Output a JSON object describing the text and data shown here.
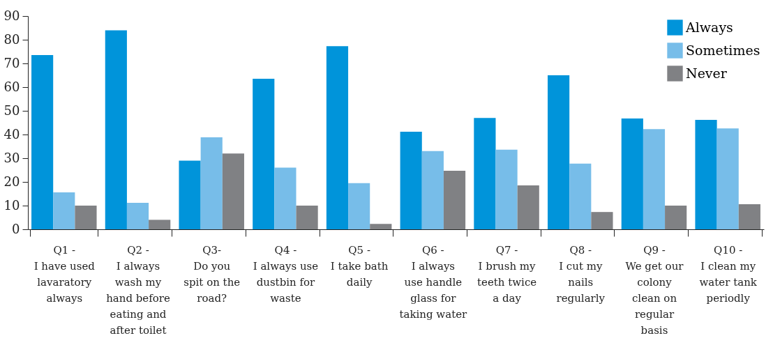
{
  "chart_data": {
    "type": "bar",
    "categories": [
      "Q1 -\nI have used\nlavaratory\nalways",
      "Q2 -\nI always\nwash my\nhand before\neating and\nafter toilet",
      "Q3-\nDo you\nspit on the\nroad?",
      "Q4 -\nI always use\ndustbin for\nwaste",
      "Q5 -\nI take bath\ndaily",
      "Q6 -\nI always\nuse handle\nglass for\ntaking water",
      "Q7 -\nI brush my\nteeth twice\na day",
      "Q8 -\nI cut my\nnails\nregularly",
      "Q9 -\nWe get our\ncolony\nclean on\nregular\nbasis",
      "Q10 -\nI clean my\nwater tank\nperiodly"
    ],
    "series": [
      {
        "name": "Always",
        "color": "#0094da",
        "values": [
          73.5,
          84,
          29,
          63.5,
          77.3,
          41.2,
          47,
          65,
          46.8,
          46.2
        ]
      },
      {
        "name": "Sometimes",
        "color": "#77bde9",
        "values": [
          15.6,
          11.2,
          38.8,
          26,
          19.5,
          33,
          33.6,
          27.7,
          42.3,
          42.6
        ]
      },
      {
        "name": "Never",
        "color": "#808184",
        "values": [
          10,
          4,
          32,
          10,
          2.3,
          24.7,
          18.5,
          7.3,
          10,
          10.6
        ]
      }
    ],
    "ylim": [
      0,
      90
    ],
    "yticks": [
      0,
      10,
      20,
      30,
      40,
      50,
      60,
      70,
      80,
      90
    ],
    "grid": false,
    "legend": "top right"
  }
}
